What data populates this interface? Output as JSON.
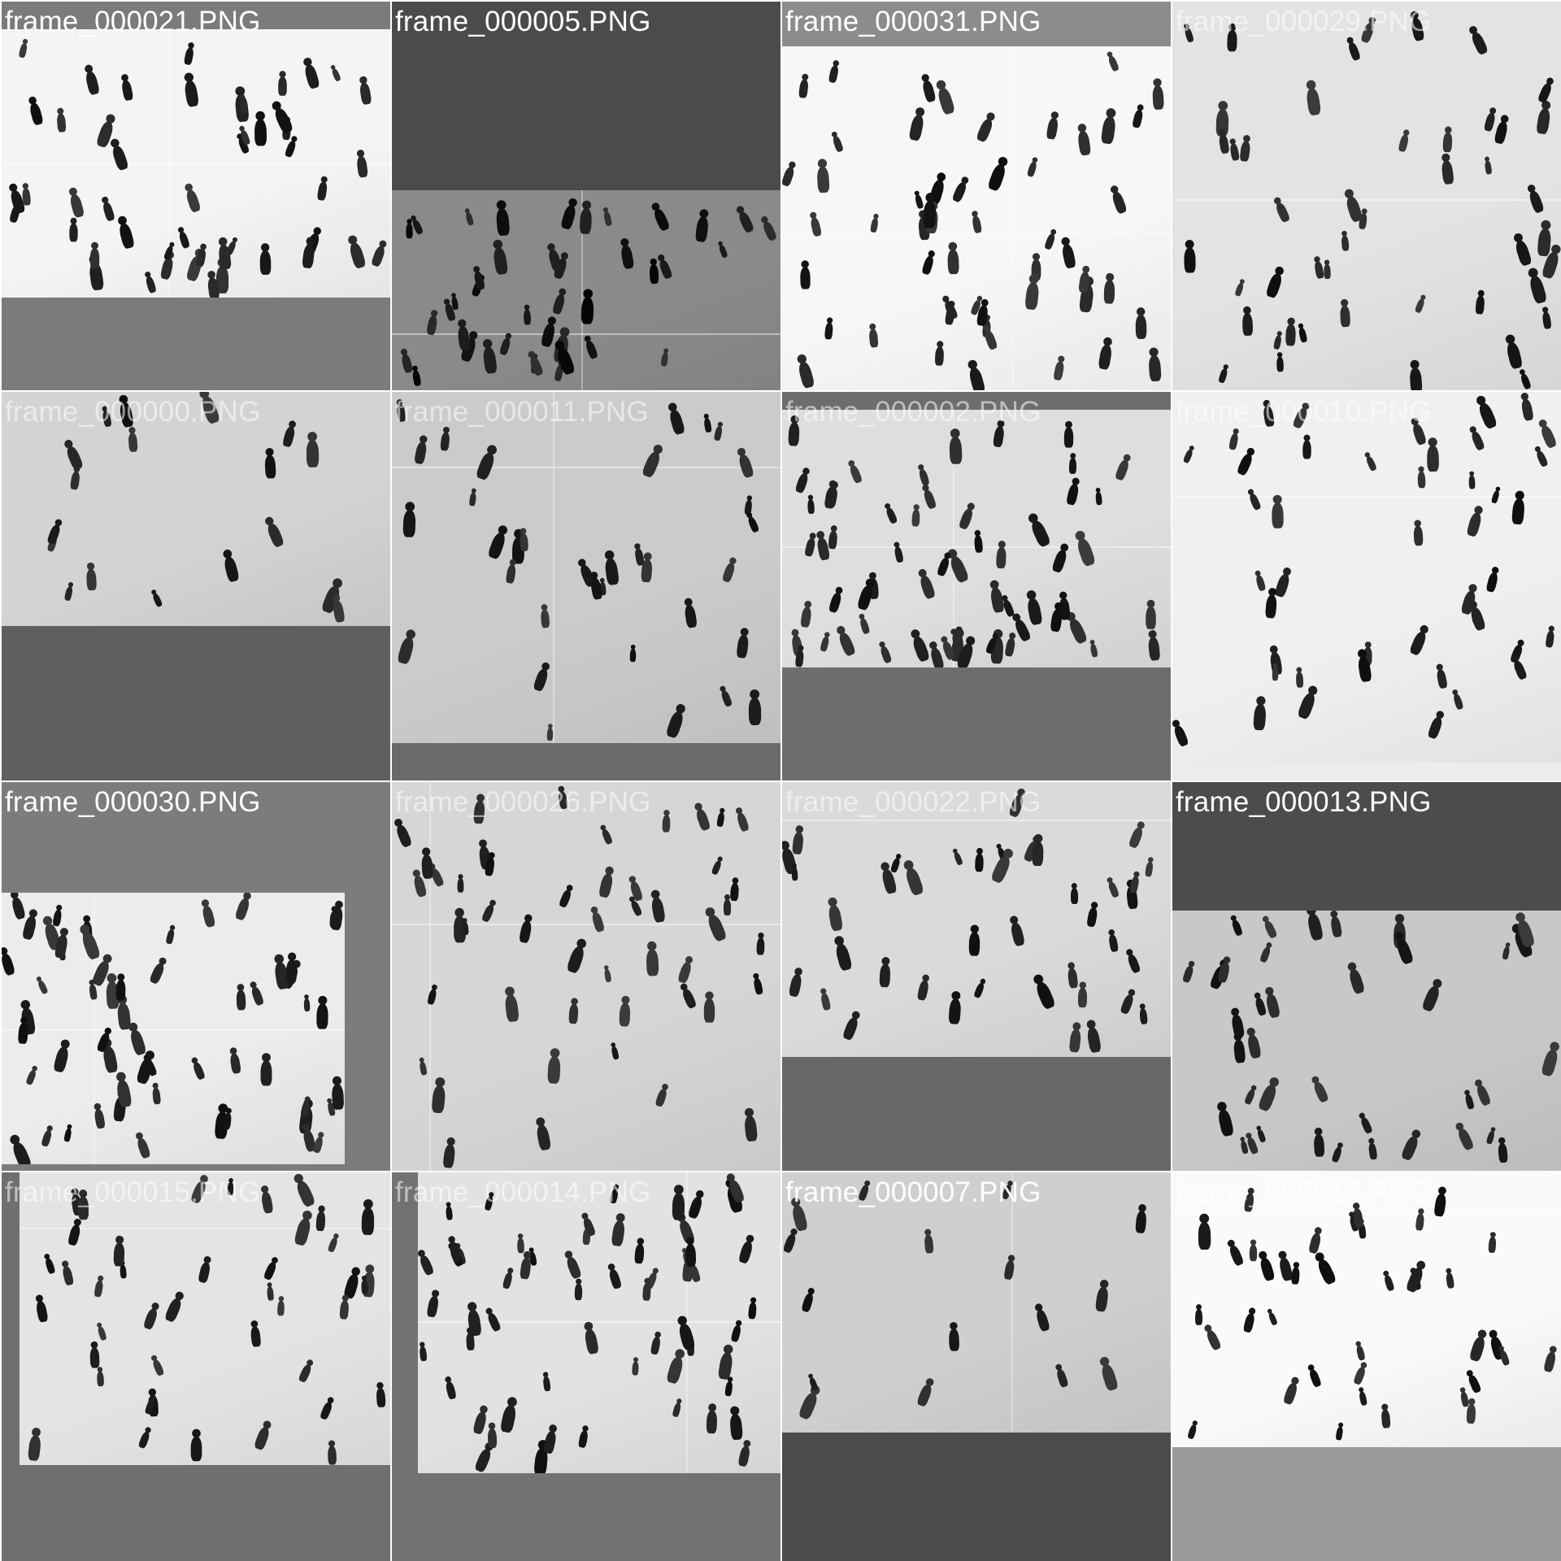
{
  "tiles": [
    {
      "label": "frame_000021.PNG",
      "bg": "#7b7b7b",
      "photo_tone": "#f4f4f4",
      "label_faint": false
    },
    {
      "label": "frame_000005.PNG",
      "bg": "#4b4b4b",
      "photo_tone": "#8a8a8a",
      "label_faint": false
    },
    {
      "label": "frame_000031.PNG",
      "bg": "#8c8c8c",
      "photo_tone": "#f7f7f7",
      "label_faint": false
    },
    {
      "label": "frame_000029.PNG",
      "bg": "#d9d9d9",
      "photo_tone": "#e3e3e3",
      "label_faint": true
    },
    {
      "label": "frame_000000.PNG",
      "bg": "#5f5f5f",
      "photo_tone": "#d3d3d3",
      "label_faint": true
    },
    {
      "label": "frame_000011.PNG",
      "bg": "#6a6a6a",
      "photo_tone": "#cbcbcb",
      "label_faint": true
    },
    {
      "label": "frame_000002.PNG",
      "bg": "#6d6d6d",
      "photo_tone": "#dedede",
      "label_faint": true
    },
    {
      "label": "frame_000010.PNG",
      "bg": "#ececec",
      "photo_tone": "#f0f0f0",
      "label_faint": true
    },
    {
      "label": "frame_000030.PNG",
      "bg": "#7c7c7c",
      "photo_tone": "#ececec",
      "label_faint": false
    },
    {
      "label": "frame_000026.PNG",
      "bg": "#dcdcdc",
      "photo_tone": "#d6d6d6",
      "label_faint": true
    },
    {
      "label": "frame_000022.PNG",
      "bg": "#686868",
      "photo_tone": "#dadada",
      "label_faint": true
    },
    {
      "label": "frame_000013.PNG",
      "bg": "#4c4c4c",
      "photo_tone": "#c8c8c8",
      "label_faint": false
    },
    {
      "label": "frame_000015.PNG",
      "bg": "#6f6f6f",
      "photo_tone": "#e4e4e4",
      "label_faint": true
    },
    {
      "label": "frame_000014.PNG",
      "bg": "#727272",
      "photo_tone": "#e2e2e2",
      "label_faint": true
    },
    {
      "label": "frame_000007.PNG",
      "bg": "#4b4b4b",
      "photo_tone": "#cfcfcf",
      "label_faint": false
    },
    {
      "label": "frame_000012.PNG",
      "bg": "#9a9a9a",
      "photo_tone": "#fafafa",
      "label_faint": true
    }
  ]
}
